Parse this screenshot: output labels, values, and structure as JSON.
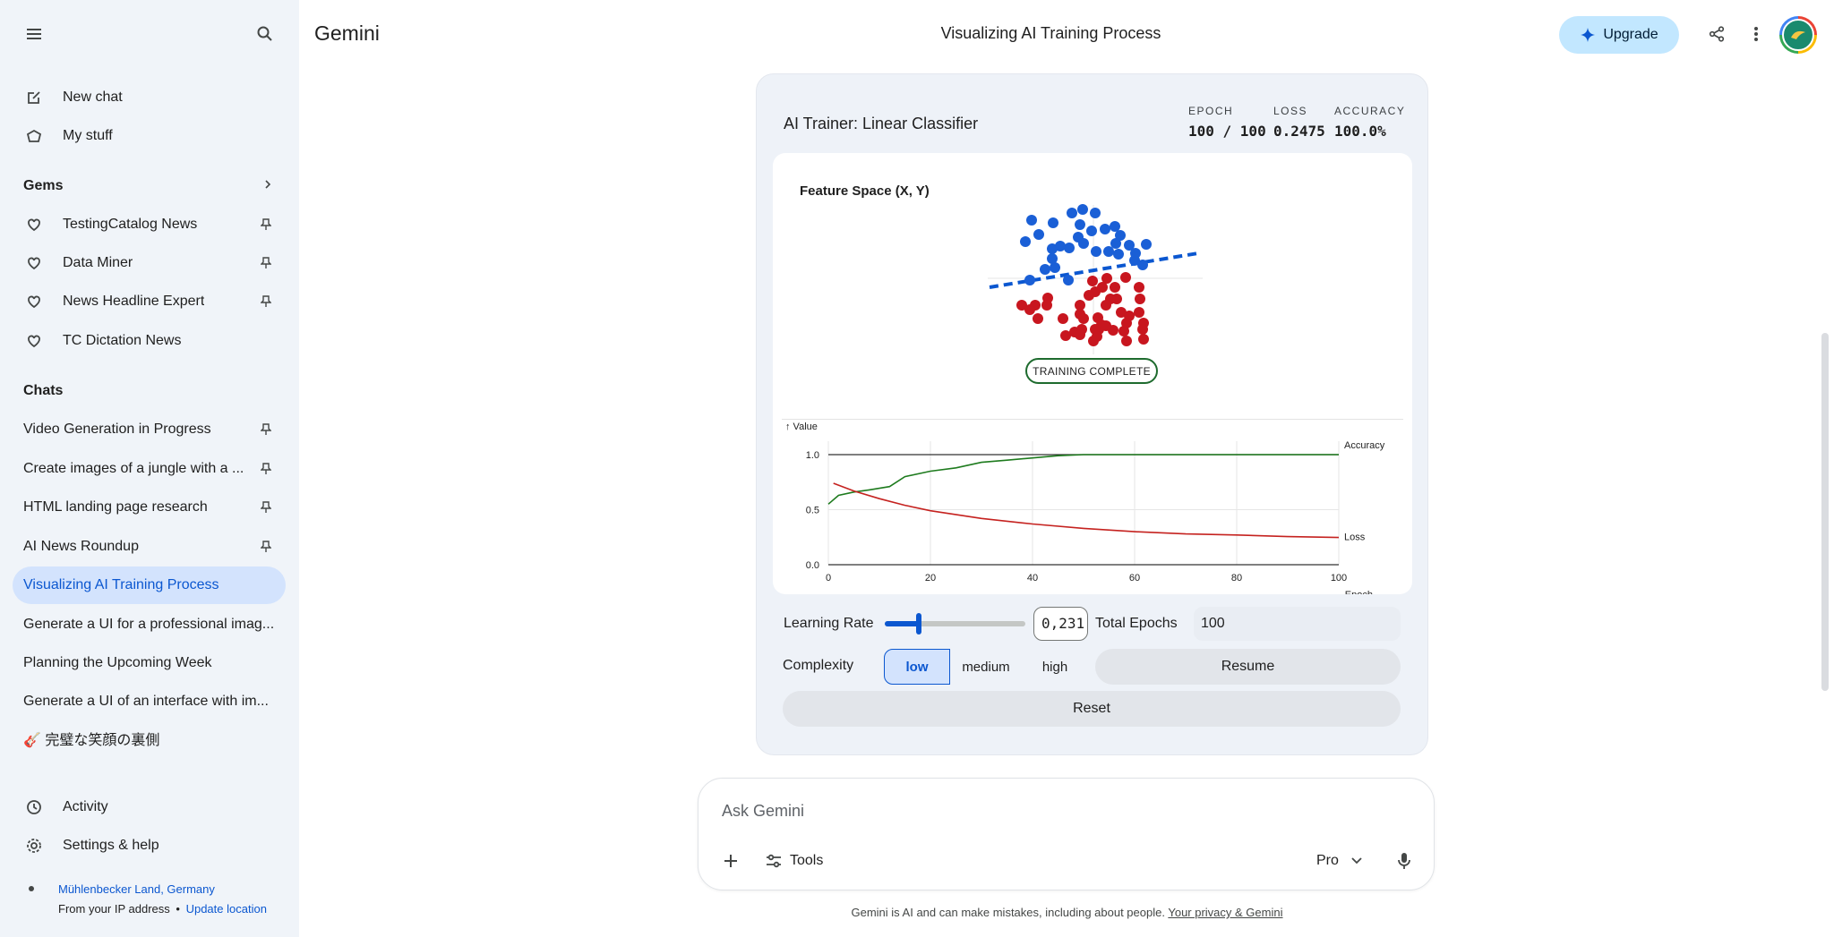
{
  "app": {
    "brand": "Gemini",
    "conversation_title": "Visualizing AI Training Process",
    "upgrade_label": "Upgrade"
  },
  "sidebar": {
    "new_chat": "New chat",
    "my_stuff": "My stuff",
    "gems_heading": "Gems",
    "gems": [
      {
        "label": "TestingCatalog News"
      },
      {
        "label": "Data Miner"
      },
      {
        "label": "News Headline Expert"
      },
      {
        "label": "TC Dictation News"
      }
    ],
    "chats_heading": "Chats",
    "chats": [
      {
        "label": "Video Generation in Progress",
        "pinned": true
      },
      {
        "label": "Create images of a jungle with a ...",
        "pinned": true
      },
      {
        "label": "HTML landing page research",
        "pinned": true
      },
      {
        "label": "AI News Roundup",
        "pinned": true
      },
      {
        "label": "Visualizing AI Training Process",
        "pinned": false,
        "active": true
      },
      {
        "label": "Generate a UI for a professional imag...",
        "pinned": false
      },
      {
        "label": "Planning the Upcoming Week",
        "pinned": false
      },
      {
        "label": "Generate a UI of an interface with im...",
        "pinned": false
      },
      {
        "label": "🎸 完璧な笑顔の裏側",
        "pinned": false
      }
    ],
    "activity": "Activity",
    "settings": "Settings & help",
    "location": {
      "place": "Mühlenbecker Land, Germany",
      "source": "From your IP address",
      "separator": "•",
      "update": "Update location"
    }
  },
  "trainer": {
    "title": "AI Trainer: Linear Classifier",
    "stats": [
      {
        "label": "EPOCH",
        "value": "100 / 100"
      },
      {
        "label": "LOSS",
        "value": "0.2475"
      },
      {
        "label": "ACCURACY",
        "value": "100.0%"
      }
    ],
    "feature_space_title": "Feature Space (X, Y)",
    "status_badge": "TRAINING COMPLETE",
    "controls": {
      "learning_rate_label": "Learning Rate",
      "learning_rate_value": "0,231",
      "learning_rate_fraction": 0.24,
      "total_epochs_label": "Total Epochs",
      "total_epochs_value": "100",
      "complexity_label": "Complexity",
      "complexity_options": [
        "low",
        "medium",
        "high"
      ],
      "complexity_selected": "low",
      "resume_label": "Resume",
      "reset_label": "Reset"
    }
  },
  "chart_data": {
    "type": "line",
    "ylabel": "Value",
    "xlabel": "Epoch",
    "xlim": [
      0,
      100
    ],
    "ylim": [
      0,
      1.0
    ],
    "x_ticks": [
      0,
      20,
      40,
      60,
      80,
      100
    ],
    "y_ticks": [
      "0.0",
      "0.5",
      "1.0"
    ],
    "series": [
      {
        "name": "Accuracy",
        "color": "#1e7b1e",
        "x": [
          0,
          2,
          5,
          8,
          12,
          15,
          20,
          25,
          30,
          35,
          40,
          45,
          50,
          55,
          60,
          70,
          80,
          90,
          100
        ],
        "values": [
          0.55,
          0.63,
          0.66,
          0.68,
          0.71,
          0.8,
          0.85,
          0.88,
          0.93,
          0.95,
          0.97,
          0.99,
          1.0,
          1.0,
          1.0,
          1.0,
          1.0,
          1.0,
          1.0
        ]
      },
      {
        "name": "Loss",
        "color": "#c5221f",
        "x": [
          1,
          5,
          10,
          15,
          20,
          30,
          40,
          50,
          60,
          70,
          80,
          90,
          100
        ],
        "values": [
          0.74,
          0.67,
          0.6,
          0.54,
          0.49,
          0.42,
          0.37,
          0.33,
          0.3,
          0.28,
          0.27,
          0.255,
          0.2475
        ]
      }
    ],
    "feature_space": {
      "classes": [
        {
          "name": "blue",
          "color": "#1a5fd6"
        },
        {
          "name": "red",
          "color": "#c8161f"
        }
      ]
    }
  },
  "ask": {
    "placeholder": "Ask Gemini",
    "tools_label": "Tools",
    "model_label": "Pro"
  },
  "footer": {
    "text": "Gemini is AI and can make mistakes, including about people.",
    "link": "Your privacy & Gemini"
  }
}
